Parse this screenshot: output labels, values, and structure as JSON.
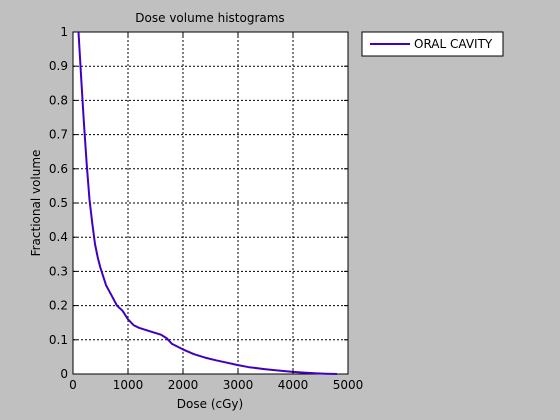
{
  "chart_data": {
    "type": "line",
    "title": "Dose volume histograms",
    "xlabel": "Dose (cGy)",
    "ylabel": "Fractional volume",
    "xlim": [
      0,
      5000
    ],
    "ylim": [
      0,
      1
    ],
    "xticks": [
      0,
      1000,
      2000,
      3000,
      4000,
      5000
    ],
    "yticks": [
      0,
      0.1,
      0.2,
      0.3,
      0.4,
      0.5,
      0.6,
      0.7,
      0.8,
      0.9,
      1
    ],
    "grid": true,
    "legend_position": "top-right, outside plot",
    "series": [
      {
        "name": "ORAL CAVITY",
        "color": "#4000c0",
        "x": [
          100,
          150,
          200,
          250,
          300,
          350,
          400,
          450,
          500,
          600,
          700,
          800,
          900,
          1000,
          1100,
          1200,
          1400,
          1600,
          1700,
          1800,
          2000,
          2200,
          2400,
          2600,
          2800,
          3000,
          3200,
          3500,
          3800,
          4000,
          4200,
          4400,
          4600,
          4800
        ],
        "y": [
          1.0,
          0.86,
          0.73,
          0.61,
          0.51,
          0.44,
          0.38,
          0.34,
          0.31,
          0.26,
          0.23,
          0.2,
          0.185,
          0.16,
          0.143,
          0.135,
          0.125,
          0.115,
          0.105,
          0.088,
          0.072,
          0.058,
          0.048,
          0.04,
          0.033,
          0.026,
          0.02,
          0.014,
          0.009,
          0.006,
          0.004,
          0.002,
          0.001,
          0.0
        ]
      }
    ]
  }
}
